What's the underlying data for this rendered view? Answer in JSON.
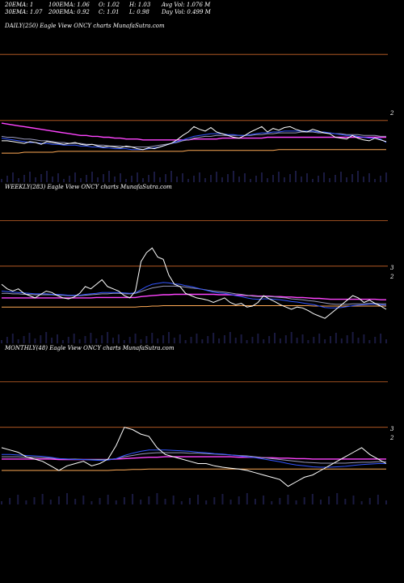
{
  "header": {
    "ema20": "20EMA: 1",
    "ema100": "100EMA: 1.06",
    "open": "O: 1.02",
    "high": "H: 1.03",
    "avgvol": "Avg Vol: 1.076  M",
    "ema30": "30EMA: 1.07",
    "ema200": "200EMA: 0.92",
    "close": "C: 1.01",
    "low": "L: 0.98",
    "dayvol": "Day Vol: 0.499 M"
  },
  "panels": [
    {
      "label": "DAILY(250) Eagle   View  ONCY charts MunafaSutra.com",
      "ticks": [
        "2"
      ]
    },
    {
      "label": "WEEKLY(283) Eagle   View  ONCY charts MunafaSutra.com",
      "ticks": [
        "3",
        "2"
      ]
    },
    {
      "label": "MONTHLY(48) Eagle   View  ONCY charts MunafaSutra.com",
      "ticks": [
        "3",
        "2"
      ]
    }
  ],
  "colors": {
    "price": "#ffffff",
    "ema20": "#3355ff",
    "ema30": "#9999bb",
    "ema100": "#ff44ff",
    "ema200": "#ffaa55",
    "gridline": "#c86428",
    "volume": "#1a1a40"
  },
  "chart_data": [
    {
      "type": "line",
      "name": "daily",
      "ylim": [
        0.55,
        2.25
      ],
      "price": [
        1.02,
        1.02,
        1.01,
        1.0,
        0.99,
        1.01,
        1.0,
        0.98,
        1.01,
        1.0,
        0.99,
        0.98,
        0.99,
        1.0,
        0.98,
        0.97,
        0.98,
        0.96,
        0.95,
        0.96,
        0.95,
        0.94,
        0.96,
        0.95,
        0.93,
        0.92,
        0.94,
        0.93,
        0.95,
        0.97,
        0.99,
        1.03,
        1.08,
        1.12,
        1.18,
        1.15,
        1.13,
        1.17,
        1.12,
        1.1,
        1.08,
        1.06,
        1.05,
        1.08,
        1.12,
        1.15,
        1.18,
        1.12,
        1.16,
        1.14,
        1.17,
        1.18,
        1.15,
        1.13,
        1.12,
        1.15,
        1.13,
        1.11,
        1.1,
        1.06,
        1.05,
        1.04,
        1.08,
        1.05,
        1.03,
        1.02,
        1.05,
        1.03,
        1.01
      ],
      "ema20": [
        1.05,
        1.04,
        1.03,
        1.02,
        1.01,
        1.0,
        1.0,
        0.99,
        0.99,
        0.98,
        0.98,
        0.97,
        0.97,
        0.97,
        0.96,
        0.96,
        0.95,
        0.95,
        0.94,
        0.94,
        0.93,
        0.93,
        0.93,
        0.92,
        0.92,
        0.92,
        0.93,
        0.94,
        0.95,
        0.97,
        0.99,
        1.01,
        1.03,
        1.05,
        1.07,
        1.08,
        1.09,
        1.1,
        1.1,
        1.1,
        1.09,
        1.09,
        1.08,
        1.08,
        1.09,
        1.1,
        1.11,
        1.11,
        1.12,
        1.12,
        1.13,
        1.13,
        1.13,
        1.13,
        1.13,
        1.13,
        1.12,
        1.12,
        1.11,
        1.1,
        1.09,
        1.08,
        1.08,
        1.07,
        1.06,
        1.05,
        1.05,
        1.04,
        1.0
      ],
      "ema30": [
        1.07,
        1.06,
        1.06,
        1.05,
        1.04,
        1.04,
        1.03,
        1.02,
        1.02,
        1.01,
        1.0,
        1.0,
        0.99,
        0.99,
        0.99,
        0.98,
        0.98,
        0.97,
        0.97,
        0.96,
        0.96,
        0.96,
        0.95,
        0.95,
        0.95,
        0.95,
        0.95,
        0.96,
        0.97,
        0.98,
        0.99,
        1.0,
        1.02,
        1.03,
        1.05,
        1.06,
        1.07,
        1.07,
        1.08,
        1.08,
        1.08,
        1.08,
        1.08,
        1.08,
        1.08,
        1.09,
        1.09,
        1.1,
        1.1,
        1.11,
        1.11,
        1.11,
        1.11,
        1.12,
        1.12,
        1.12,
        1.11,
        1.11,
        1.11,
        1.1,
        1.1,
        1.09,
        1.09,
        1.09,
        1.08,
        1.08,
        1.08,
        1.07,
        1.07
      ],
      "ema100": [
        1.22,
        1.21,
        1.2,
        1.19,
        1.18,
        1.17,
        1.16,
        1.15,
        1.14,
        1.13,
        1.12,
        1.11,
        1.1,
        1.09,
        1.08,
        1.08,
        1.07,
        1.07,
        1.06,
        1.06,
        1.05,
        1.05,
        1.04,
        1.04,
        1.04,
        1.03,
        1.03,
        1.03,
        1.03,
        1.03,
        1.03,
        1.03,
        1.03,
        1.03,
        1.04,
        1.04,
        1.04,
        1.04,
        1.04,
        1.05,
        1.05,
        1.05,
        1.05,
        1.05,
        1.05,
        1.05,
        1.05,
        1.06,
        1.06,
        1.06,
        1.06,
        1.06,
        1.06,
        1.06,
        1.06,
        1.06,
        1.06,
        1.06,
        1.06,
        1.06,
        1.06,
        1.06,
        1.06,
        1.06,
        1.06,
        1.06,
        1.06,
        1.06,
        1.06
      ],
      "ema200": [
        0.88,
        0.88,
        0.88,
        0.88,
        0.89,
        0.89,
        0.89,
        0.89,
        0.89,
        0.89,
        0.9,
        0.9,
        0.9,
        0.9,
        0.9,
        0.9,
        0.9,
        0.9,
        0.9,
        0.9,
        0.9,
        0.9,
        0.9,
        0.9,
        0.9,
        0.9,
        0.9,
        0.9,
        0.9,
        0.9,
        0.9,
        0.9,
        0.9,
        0.91,
        0.91,
        0.91,
        0.91,
        0.91,
        0.91,
        0.91,
        0.91,
        0.91,
        0.91,
        0.91,
        0.91,
        0.91,
        0.91,
        0.91,
        0.91,
        0.92,
        0.92,
        0.92,
        0.92,
        0.92,
        0.92,
        0.92,
        0.92,
        0.92,
        0.92,
        0.92,
        0.92,
        0.92,
        0.92,
        0.92,
        0.92,
        0.92,
        0.92,
        0.92,
        0.92
      ],
      "hlines": [
        2.0,
        1.25
      ]
    },
    {
      "type": "line",
      "name": "weekly",
      "ylim": [
        0.3,
        3.6
      ],
      "price": [
        1.6,
        1.5,
        1.45,
        1.5,
        1.4,
        1.35,
        1.3,
        1.38,
        1.45,
        1.42,
        1.35,
        1.3,
        1.28,
        1.32,
        1.4,
        1.55,
        1.5,
        1.6,
        1.7,
        1.55,
        1.5,
        1.45,
        1.35,
        1.3,
        1.45,
        2.1,
        2.3,
        2.4,
        2.2,
        2.15,
        1.8,
        1.6,
        1.55,
        1.4,
        1.35,
        1.3,
        1.28,
        1.25,
        1.2,
        1.25,
        1.3,
        1.2,
        1.15,
        1.18,
        1.1,
        1.12,
        1.2,
        1.35,
        1.28,
        1.22,
        1.15,
        1.1,
        1.05,
        1.1,
        1.08,
        1.02,
        0.95,
        0.9,
        0.85,
        0.95,
        1.05,
        1.15,
        1.25,
        1.35,
        1.3,
        1.2,
        1.25,
        1.18,
        1.12,
        1.05
      ],
      "ema20": [
        1.45,
        1.44,
        1.43,
        1.42,
        1.41,
        1.4,
        1.39,
        1.39,
        1.39,
        1.38,
        1.38,
        1.37,
        1.36,
        1.36,
        1.36,
        1.38,
        1.39,
        1.4,
        1.42,
        1.42,
        1.42,
        1.42,
        1.41,
        1.4,
        1.41,
        1.48,
        1.55,
        1.6,
        1.62,
        1.64,
        1.63,
        1.61,
        1.6,
        1.57,
        1.55,
        1.52,
        1.49,
        1.46,
        1.43,
        1.41,
        1.4,
        1.38,
        1.35,
        1.33,
        1.3,
        1.28,
        1.27,
        1.28,
        1.28,
        1.27,
        1.26,
        1.24,
        1.22,
        1.21,
        1.19,
        1.17,
        1.15,
        1.12,
        1.09,
        1.08,
        1.08,
        1.09,
        1.11,
        1.13,
        1.14,
        1.15,
        1.16,
        1.16,
        1.15,
        1.14
      ],
      "ema30": [
        1.4,
        1.4,
        1.39,
        1.39,
        1.38,
        1.38,
        1.37,
        1.37,
        1.37,
        1.37,
        1.36,
        1.36,
        1.35,
        1.35,
        1.35,
        1.36,
        1.37,
        1.38,
        1.39,
        1.39,
        1.4,
        1.4,
        1.39,
        1.39,
        1.4,
        1.44,
        1.48,
        1.52,
        1.54,
        1.56,
        1.56,
        1.56,
        1.55,
        1.54,
        1.52,
        1.51,
        1.49,
        1.47,
        1.45,
        1.44,
        1.43,
        1.41,
        1.39,
        1.38,
        1.36,
        1.34,
        1.33,
        1.33,
        1.33,
        1.32,
        1.31,
        1.3,
        1.28,
        1.27,
        1.26,
        1.24,
        1.23,
        1.21,
        1.19,
        1.17,
        1.16,
        1.16,
        1.16,
        1.17,
        1.17,
        1.17,
        1.18,
        1.18,
        1.17,
        1.17
      ],
      "ema100": [
        1.3,
        1.3,
        1.3,
        1.3,
        1.3,
        1.3,
        1.3,
        1.3,
        1.3,
        1.3,
        1.3,
        1.3,
        1.3,
        1.3,
        1.3,
        1.3,
        1.3,
        1.31,
        1.31,
        1.31,
        1.31,
        1.31,
        1.31,
        1.31,
        1.31,
        1.33,
        1.34,
        1.35,
        1.36,
        1.37,
        1.37,
        1.38,
        1.38,
        1.38,
        1.38,
        1.38,
        1.38,
        1.38,
        1.38,
        1.37,
        1.37,
        1.37,
        1.36,
        1.36,
        1.35,
        1.35,
        1.34,
        1.34,
        1.34,
        1.33,
        1.33,
        1.32,
        1.32,
        1.31,
        1.31,
        1.3,
        1.29,
        1.29,
        1.28,
        1.27,
        1.27,
        1.27,
        1.27,
        1.27,
        1.27,
        1.27,
        1.27,
        1.27,
        1.26,
        1.26
      ],
      "ema200": [
        1.1,
        1.1,
        1.1,
        1.1,
        1.1,
        1.1,
        1.1,
        1.1,
        1.1,
        1.1,
        1.1,
        1.1,
        1.1,
        1.1,
        1.1,
        1.1,
        1.1,
        1.1,
        1.1,
        1.1,
        1.1,
        1.1,
        1.1,
        1.1,
        1.1,
        1.11,
        1.11,
        1.12,
        1.12,
        1.13,
        1.13,
        1.13,
        1.13,
        1.13,
        1.13,
        1.13,
        1.13,
        1.13,
        1.13,
        1.13,
        1.13,
        1.13,
        1.13,
        1.13,
        1.13,
        1.13,
        1.13,
        1.13,
        1.13,
        1.13,
        1.13,
        1.13,
        1.13,
        1.13,
        1.13,
        1.13,
        1.12,
        1.12,
        1.12,
        1.12,
        1.12,
        1.12,
        1.12,
        1.12,
        1.12,
        1.12,
        1.12,
        1.12,
        1.12,
        1.12
      ],
      "hlines": [
        3.0,
        2.0
      ]
    },
    {
      "type": "line",
      "name": "monthly",
      "ylim": [
        0.3,
        3.6
      ],
      "price": [
        1.55,
        1.5,
        1.45,
        1.35,
        1.3,
        1.25,
        1.15,
        1.05,
        1.15,
        1.2,
        1.25,
        1.15,
        1.2,
        1.3,
        1.6,
        2.0,
        1.95,
        1.85,
        1.8,
        1.55,
        1.4,
        1.35,
        1.3,
        1.25,
        1.2,
        1.2,
        1.15,
        1.12,
        1.1,
        1.08,
        1.05,
        1.0,
        0.95,
        0.9,
        0.85,
        0.7,
        0.8,
        0.9,
        0.95,
        1.05,
        1.15,
        1.25,
        1.35,
        1.45,
        1.55,
        1.4,
        1.3,
        1.2
      ],
      "ema20": [
        1.4,
        1.4,
        1.39,
        1.38,
        1.37,
        1.36,
        1.34,
        1.31,
        1.3,
        1.29,
        1.29,
        1.28,
        1.27,
        1.28,
        1.31,
        1.38,
        1.43,
        1.47,
        1.5,
        1.5,
        1.5,
        1.49,
        1.48,
        1.47,
        1.45,
        1.44,
        1.42,
        1.41,
        1.39,
        1.37,
        1.35,
        1.33,
        1.3,
        1.27,
        1.24,
        1.2,
        1.17,
        1.15,
        1.13,
        1.12,
        1.12,
        1.13,
        1.14,
        1.16,
        1.18,
        1.19,
        1.2,
        1.2
      ],
      "ema30": [
        1.35,
        1.35,
        1.35,
        1.34,
        1.34,
        1.33,
        1.32,
        1.31,
        1.3,
        1.3,
        1.29,
        1.29,
        1.29,
        1.29,
        1.31,
        1.35,
        1.38,
        1.41,
        1.43,
        1.44,
        1.44,
        1.44,
        1.44,
        1.43,
        1.43,
        1.42,
        1.41,
        1.4,
        1.39,
        1.38,
        1.37,
        1.35,
        1.33,
        1.31,
        1.29,
        1.27,
        1.25,
        1.23,
        1.22,
        1.21,
        1.21,
        1.21,
        1.21,
        1.22,
        1.23,
        1.23,
        1.24,
        1.24
      ],
      "ema100": [
        1.3,
        1.3,
        1.3,
        1.3,
        1.3,
        1.3,
        1.3,
        1.29,
        1.29,
        1.29,
        1.29,
        1.29,
        1.29,
        1.29,
        1.3,
        1.31,
        1.32,
        1.33,
        1.34,
        1.34,
        1.35,
        1.35,
        1.35,
        1.35,
        1.35,
        1.35,
        1.35,
        1.35,
        1.35,
        1.34,
        1.34,
        1.34,
        1.33,
        1.33,
        1.32,
        1.32,
        1.31,
        1.31,
        1.3,
        1.3,
        1.3,
        1.3,
        1.3,
        1.3,
        1.3,
        1.3,
        1.3,
        1.3
      ],
      "ema200": [
        1.05,
        1.05,
        1.05,
        1.05,
        1.05,
        1.05,
        1.05,
        1.05,
        1.05,
        1.05,
        1.05,
        1.05,
        1.05,
        1.05,
        1.06,
        1.06,
        1.07,
        1.07,
        1.08,
        1.08,
        1.08,
        1.08,
        1.08,
        1.08,
        1.08,
        1.08,
        1.08,
        1.08,
        1.08,
        1.08,
        1.08,
        1.08,
        1.08,
        1.08,
        1.08,
        1.08,
        1.08,
        1.08,
        1.08,
        1.08,
        1.08,
        1.08,
        1.08,
        1.08,
        1.08,
        1.08,
        1.08,
        1.08
      ],
      "hlines": [
        3.0,
        2.0
      ]
    }
  ]
}
